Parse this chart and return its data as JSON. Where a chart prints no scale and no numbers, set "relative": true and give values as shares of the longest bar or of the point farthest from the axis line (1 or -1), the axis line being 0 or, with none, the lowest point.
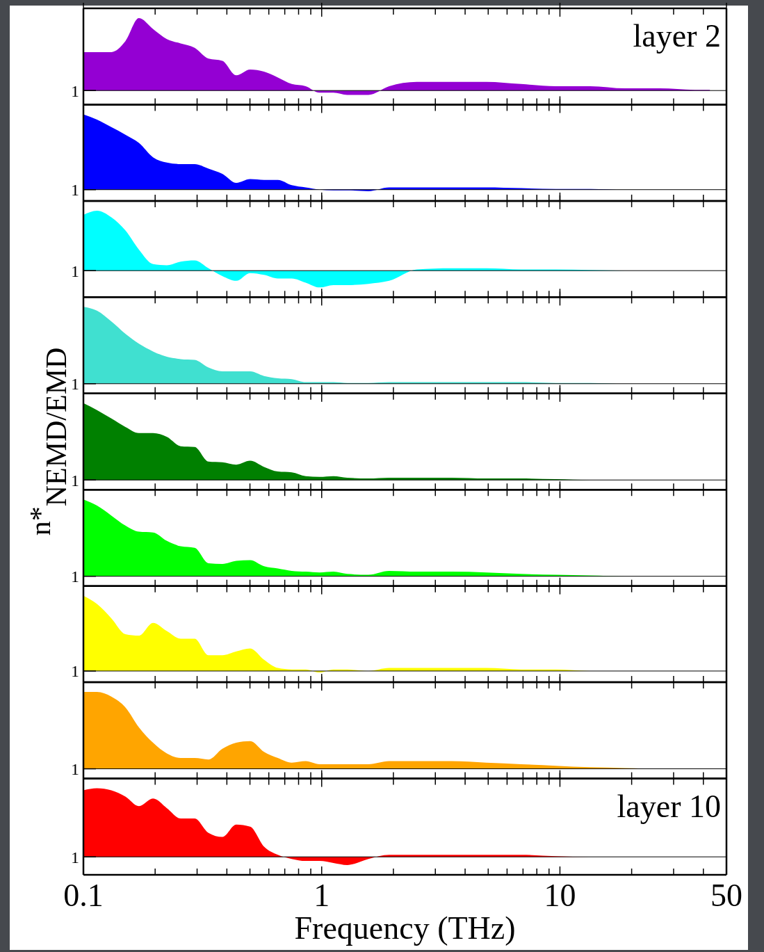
{
  "chart_data": [
    {
      "type": "area",
      "relative": true,
      "log": "x",
      "tick_labels": false,
      "xlim": [
        0.1,
        50
      ],
      "xticks": [
        0.1,
        {
          "value": 0.2,
          "label": null
        },
        {
          "value": 0.3,
          "label": null
        },
        {
          "value": 0.4,
          "label": null
        },
        {
          "value": 0.5,
          "label": null
        },
        {
          "value": 0.6,
          "label": null
        },
        {
          "value": 0.7,
          "label": null
        },
        {
          "value": 0.8,
          "label": null
        },
        {
          "value": 0.9,
          "label": null
        },
        1,
        {
          "value": 2,
          "label": null
        },
        {
          "value": 3,
          "label": null
        },
        {
          "value": 4,
          "label": null
        },
        {
          "value": 5,
          "label": null
        },
        {
          "value": 6,
          "label": null
        },
        {
          "value": 7,
          "label": null
        },
        {
          "value": 8,
          "label": null
        },
        {
          "value": 9,
          "label": null
        },
        10,
        {
          "value": 20,
          "label": null
        },
        {
          "value": 30,
          "label": null
        },
        {
          "value": 40,
          "label": null
        },
        50
      ],
      "x": [
        0.1,
        0.114,
        0.131,
        0.15,
        0.171,
        0.196,
        0.224,
        0.256,
        0.293,
        0.335,
        0.383,
        0.438,
        0.501,
        0.573,
        0.655,
        0.749,
        0.857,
        0.98,
        1.12,
        1.28,
        1.57,
        1.92,
        2.51,
        3.51,
        4.91,
        6.87,
        9.61,
        13.4,
        18.8,
        26.3,
        36.8,
        42.6
      ],
      "series": [
        {
          "color": "#9400d3",
          "values": [
            0.53,
            0.53,
            0.53,
            0.68,
            1,
            0.85,
            0.71,
            0.65,
            0.59,
            0.44,
            0.41,
            0.21,
            0.29,
            0.26,
            0.18,
            0.09,
            0.06,
            -0.03,
            -0.03,
            -0.06,
            -0.06,
            0.06,
            0.12,
            0.12,
            0.12,
            0.09,
            0.06,
            0.06,
            0.03,
            0.03,
            0.01,
            0.01
          ]
        }
      ],
      "annotations": [
        "1",
        "layer 2"
      ]
    },
    {
      "type": "area",
      "relative": true,
      "log": "x",
      "tick_labels": false,
      "xlim": [
        0.1,
        50
      ],
      "xticks": [
        0.1,
        {
          "value": 0.2,
          "label": null
        },
        {
          "value": 0.3,
          "label": null
        },
        {
          "value": 0.4,
          "label": null
        },
        {
          "value": 0.5,
          "label": null
        },
        {
          "value": 0.6,
          "label": null
        },
        {
          "value": 0.7,
          "label": null
        },
        {
          "value": 0.8,
          "label": null
        },
        {
          "value": 0.9,
          "label": null
        },
        1,
        {
          "value": 2,
          "label": null
        },
        {
          "value": 3,
          "label": null
        },
        {
          "value": 4,
          "label": null
        },
        {
          "value": 5,
          "label": null
        },
        {
          "value": 6,
          "label": null
        },
        {
          "value": 7,
          "label": null
        },
        {
          "value": 8,
          "label": null
        },
        {
          "value": 9,
          "label": null
        },
        10,
        {
          "value": 20,
          "label": null
        },
        {
          "value": 30,
          "label": null
        },
        {
          "value": 40,
          "label": null
        },
        50
      ],
      "x": [
        0.1,
        0.114,
        0.131,
        0.15,
        0.171,
        0.196,
        0.224,
        0.256,
        0.293,
        0.335,
        0.383,
        0.438,
        0.501,
        0.573,
        0.655,
        0.749,
        0.857,
        0.98,
        1.12,
        1.28,
        1.57,
        1.92,
        2.51,
        3.51,
        4.91,
        6.87,
        9.61,
        13.4,
        18.8,
        26.3,
        36.8,
        42.6
      ],
      "series": [
        {
          "color": "#0000ff",
          "values": [
            1,
            0.93,
            0.83,
            0.73,
            0.62,
            0.43,
            0.36,
            0.34,
            0.34,
            0.28,
            0.21,
            0.09,
            0.14,
            0.13,
            0.13,
            0.06,
            0.03,
            0,
            -0.01,
            -0.01,
            -0.02,
            0.03,
            0.03,
            0.03,
            0.03,
            0.02,
            0.01,
            0.01,
            0,
            0,
            0,
            0
          ]
        }
      ],
      "annotations": [
        "1"
      ]
    },
    {
      "type": "area",
      "relative": true,
      "log": "x",
      "tick_labels": false,
      "xlim": [
        0.1,
        50
      ],
      "xticks": [
        0.1,
        {
          "value": 0.2,
          "label": null
        },
        {
          "value": 0.3,
          "label": null
        },
        {
          "value": 0.4,
          "label": null
        },
        {
          "value": 0.5,
          "label": null
        },
        {
          "value": 0.6,
          "label": null
        },
        {
          "value": 0.7,
          "label": null
        },
        {
          "value": 0.8,
          "label": null
        },
        {
          "value": 0.9,
          "label": null
        },
        1,
        {
          "value": 2,
          "label": null
        },
        {
          "value": 3,
          "label": null
        },
        {
          "value": 4,
          "label": null
        },
        {
          "value": 5,
          "label": null
        },
        {
          "value": 6,
          "label": null
        },
        {
          "value": 7,
          "label": null
        },
        {
          "value": 8,
          "label": null
        },
        {
          "value": 9,
          "label": null
        },
        10,
        {
          "value": 20,
          "label": null
        },
        {
          "value": 30,
          "label": null
        },
        {
          "value": 40,
          "label": null
        },
        50
      ],
      "x": [
        0.1,
        0.114,
        0.131,
        0.15,
        0.171,
        0.196,
        0.224,
        0.256,
        0.293,
        0.335,
        0.383,
        0.438,
        0.501,
        0.573,
        0.655,
        0.749,
        0.857,
        0.98,
        1.12,
        1.28,
        1.57,
        1.92,
        2.51,
        3.51,
        4.91,
        6.87,
        9.61,
        13.4,
        18.8,
        26.3,
        36.8,
        42.6
      ],
      "series": [
        {
          "color": "#00ffff",
          "values": [
            0.93,
            1,
            0.89,
            0.67,
            0.35,
            0.11,
            0.09,
            0.15,
            0.17,
            0.04,
            -0.09,
            -0.17,
            -0.04,
            -0.07,
            -0.13,
            -0.13,
            -0.2,
            -0.28,
            -0.24,
            -0.24,
            -0.22,
            -0.17,
            0.02,
            0.04,
            0.04,
            0.02,
            0.02,
            0.01,
            0,
            0,
            0,
            0
          ]
        }
      ],
      "annotations": [
        "1"
      ]
    },
    {
      "type": "area",
      "relative": true,
      "log": "x",
      "tick_labels": false,
      "xlim": [
        0.1,
        50
      ],
      "xticks": [
        0.1,
        {
          "value": 0.2,
          "label": null
        },
        {
          "value": 0.3,
          "label": null
        },
        {
          "value": 0.4,
          "label": null
        },
        {
          "value": 0.5,
          "label": null
        },
        {
          "value": 0.6,
          "label": null
        },
        {
          "value": 0.7,
          "label": null
        },
        {
          "value": 0.8,
          "label": null
        },
        {
          "value": 0.9,
          "label": null
        },
        1,
        {
          "value": 2,
          "label": null
        },
        {
          "value": 3,
          "label": null
        },
        {
          "value": 4,
          "label": null
        },
        {
          "value": 5,
          "label": null
        },
        {
          "value": 6,
          "label": null
        },
        {
          "value": 7,
          "label": null
        },
        {
          "value": 8,
          "label": null
        },
        {
          "value": 9,
          "label": null
        },
        10,
        {
          "value": 20,
          "label": null
        },
        {
          "value": 30,
          "label": null
        },
        {
          "value": 40,
          "label": null
        },
        50
      ],
      "x": [
        0.1,
        0.114,
        0.131,
        0.15,
        0.171,
        0.196,
        0.224,
        0.256,
        0.293,
        0.335,
        0.383,
        0.438,
        0.501,
        0.573,
        0.655,
        0.749,
        0.857,
        0.98,
        1.12,
        1.28,
        1.57,
        1.92,
        2.51,
        3.51,
        4.91,
        6.87,
        9.61,
        13.4,
        18.8,
        26.3,
        36.8,
        42.6
      ],
      "series": [
        {
          "color": "#40e0d0",
          "values": [
            1,
            0.95,
            0.81,
            0.65,
            0.52,
            0.42,
            0.35,
            0.32,
            0.31,
            0.21,
            0.16,
            0.16,
            0.16,
            0.1,
            0.07,
            0.06,
            0.02,
            0.02,
            0.02,
            0.01,
            0.01,
            0.02,
            0.02,
            0.02,
            0.02,
            0.02,
            0.01,
            0.01,
            0,
            0,
            0,
            0
          ]
        }
      ],
      "annotations": [
        "1"
      ]
    },
    {
      "type": "area",
      "relative": true,
      "log": "x",
      "tick_labels": false,
      "xlim": [
        0.1,
        50
      ],
      "xticks": [
        0.1,
        {
          "value": 0.2,
          "label": null
        },
        {
          "value": 0.3,
          "label": null
        },
        {
          "value": 0.4,
          "label": null
        },
        {
          "value": 0.5,
          "label": null
        },
        {
          "value": 0.6,
          "label": null
        },
        {
          "value": 0.7,
          "label": null
        },
        {
          "value": 0.8,
          "label": null
        },
        {
          "value": 0.9,
          "label": null
        },
        1,
        {
          "value": 2,
          "label": null
        },
        {
          "value": 3,
          "label": null
        },
        {
          "value": 4,
          "label": null
        },
        {
          "value": 5,
          "label": null
        },
        {
          "value": 6,
          "label": null
        },
        {
          "value": 7,
          "label": null
        },
        {
          "value": 8,
          "label": null
        },
        {
          "value": 9,
          "label": null
        },
        10,
        {
          "value": 20,
          "label": null
        },
        {
          "value": 30,
          "label": null
        },
        {
          "value": 40,
          "label": null
        },
        50
      ],
      "x": [
        0.1,
        0.114,
        0.131,
        0.15,
        0.171,
        0.196,
        0.224,
        0.256,
        0.293,
        0.335,
        0.383,
        0.438,
        0.501,
        0.573,
        0.655,
        0.749,
        0.857,
        0.98,
        1.12,
        1.28,
        1.57,
        1.92,
        2.51,
        3.51,
        4.91,
        6.87,
        9.61,
        13.4,
        18.8,
        26.3,
        36.8,
        42.6
      ],
      "series": [
        {
          "color": "#008000",
          "values": [
            1,
            0.91,
            0.8,
            0.69,
            0.61,
            0.61,
            0.56,
            0.44,
            0.43,
            0.24,
            0.23,
            0.2,
            0.25,
            0.17,
            0.11,
            0.1,
            0.05,
            0.04,
            0.05,
            0.03,
            0.02,
            0.03,
            0.03,
            0.03,
            0.02,
            0.02,
            0.01,
            0,
            0,
            0,
            0,
            0
          ]
        }
      ],
      "ylabel": "n*$_{NEMD/EMD}$",
      "annotations": [
        "1"
      ]
    },
    {
      "type": "area",
      "relative": true,
      "log": "x",
      "tick_labels": false,
      "xlim": [
        0.1,
        50
      ],
      "xticks": [
        0.1,
        {
          "value": 0.2,
          "label": null
        },
        {
          "value": 0.3,
          "label": null
        },
        {
          "value": 0.4,
          "label": null
        },
        {
          "value": 0.5,
          "label": null
        },
        {
          "value": 0.6,
          "label": null
        },
        {
          "value": 0.7,
          "label": null
        },
        {
          "value": 0.8,
          "label": null
        },
        {
          "value": 0.9,
          "label": null
        },
        1,
        {
          "value": 2,
          "label": null
        },
        {
          "value": 3,
          "label": null
        },
        {
          "value": 4,
          "label": null
        },
        {
          "value": 5,
          "label": null
        },
        {
          "value": 6,
          "label": null
        },
        {
          "value": 7,
          "label": null
        },
        {
          "value": 8,
          "label": null
        },
        {
          "value": 9,
          "label": null
        },
        10,
        {
          "value": 20,
          "label": null
        },
        {
          "value": 30,
          "label": null
        },
        {
          "value": 40,
          "label": null
        },
        50
      ],
      "x": [
        0.1,
        0.114,
        0.131,
        0.15,
        0.171,
        0.196,
        0.224,
        0.256,
        0.293,
        0.335,
        0.383,
        0.438,
        0.501,
        0.573,
        0.655,
        0.749,
        0.857,
        0.98,
        1.12,
        1.28,
        1.57,
        1.92,
        2.51,
        3.51,
        4.91,
        6.87,
        9.61,
        13.4,
        18.8,
        26.3,
        36.8,
        42.6
      ],
      "series": [
        {
          "color": "#00ff00",
          "values": [
            1,
            0.92,
            0.79,
            0.66,
            0.58,
            0.57,
            0.46,
            0.39,
            0.37,
            0.17,
            0.16,
            0.2,
            0.21,
            0.13,
            0.1,
            0.07,
            0.06,
            0.05,
            0.06,
            0.03,
            0.02,
            0.07,
            0.06,
            0.06,
            0.05,
            0.03,
            0.02,
            0.01,
            0,
            0,
            0,
            0
          ]
        }
      ],
      "annotations": [
        "1"
      ]
    },
    {
      "type": "area",
      "relative": true,
      "log": "x",
      "tick_labels": false,
      "xlim": [
        0.1,
        50
      ],
      "xticks": [
        0.1,
        {
          "value": 0.2,
          "label": null
        },
        {
          "value": 0.3,
          "label": null
        },
        {
          "value": 0.4,
          "label": null
        },
        {
          "value": 0.5,
          "label": null
        },
        {
          "value": 0.6,
          "label": null
        },
        {
          "value": 0.7,
          "label": null
        },
        {
          "value": 0.8,
          "label": null
        },
        {
          "value": 0.9,
          "label": null
        },
        1,
        {
          "value": 2,
          "label": null
        },
        {
          "value": 3,
          "label": null
        },
        {
          "value": 4,
          "label": null
        },
        {
          "value": 5,
          "label": null
        },
        {
          "value": 6,
          "label": null
        },
        {
          "value": 7,
          "label": null
        },
        {
          "value": 8,
          "label": null
        },
        {
          "value": 9,
          "label": null
        },
        10,
        {
          "value": 20,
          "label": null
        },
        {
          "value": 30,
          "label": null
        },
        {
          "value": 40,
          "label": null
        },
        50
      ],
      "x": [
        0.1,
        0.114,
        0.131,
        0.15,
        0.171,
        0.196,
        0.224,
        0.256,
        0.293,
        0.335,
        0.383,
        0.438,
        0.501,
        0.573,
        0.655,
        0.749,
        0.857,
        0.98,
        1.12,
        1.28,
        1.57,
        1.92,
        2.51,
        3.51,
        4.91,
        6.87,
        9.61,
        13.4,
        18.8,
        26.3,
        36.8,
        42.6
      ],
      "series": [
        {
          "color": "#ffff00",
          "values": [
            1,
            0.89,
            0.7,
            0.49,
            0.47,
            0.64,
            0.53,
            0.43,
            0.43,
            0.21,
            0.21,
            0.26,
            0.3,
            0.15,
            0.04,
            0.02,
            0.02,
            -0.02,
            0.02,
            0.02,
            0,
            0.04,
            0.04,
            0.04,
            0.04,
            0.02,
            0.02,
            0,
            0,
            0,
            0,
            0
          ]
        }
      ],
      "annotations": [
        "1"
      ]
    },
    {
      "type": "area",
      "relative": true,
      "log": "x",
      "tick_labels": false,
      "xlim": [
        0.1,
        50
      ],
      "xticks": [
        0.1,
        {
          "value": 0.2,
          "label": null
        },
        {
          "value": 0.3,
          "label": null
        },
        {
          "value": 0.4,
          "label": null
        },
        {
          "value": 0.5,
          "label": null
        },
        {
          "value": 0.6,
          "label": null
        },
        {
          "value": 0.7,
          "label": null
        },
        {
          "value": 0.8,
          "label": null
        },
        {
          "value": 0.9,
          "label": null
        },
        1,
        {
          "value": 2,
          "label": null
        },
        {
          "value": 3,
          "label": null
        },
        {
          "value": 4,
          "label": null
        },
        {
          "value": 5,
          "label": null
        },
        {
          "value": 6,
          "label": null
        },
        {
          "value": 7,
          "label": null
        },
        {
          "value": 8,
          "label": null
        },
        {
          "value": 9,
          "label": null
        },
        10,
        {
          "value": 20,
          "label": null
        },
        {
          "value": 30,
          "label": null
        },
        {
          "value": 40,
          "label": null
        },
        50
      ],
      "x": [
        0.1,
        0.114,
        0.131,
        0.15,
        0.171,
        0.196,
        0.224,
        0.256,
        0.293,
        0.335,
        0.383,
        0.438,
        0.501,
        0.573,
        0.655,
        0.749,
        0.857,
        0.98,
        1.12,
        1.28,
        1.57,
        1.92,
        2.51,
        3.51,
        4.91,
        6.87,
        9.61,
        13.4,
        18.8,
        26.3,
        36.8,
        42.6
      ],
      "series": [
        {
          "color": "#ffa500",
          "values": [
            1,
            1,
            0.94,
            0.8,
            0.54,
            0.34,
            0.2,
            0.14,
            0.14,
            0.12,
            0.26,
            0.34,
            0.36,
            0.22,
            0.14,
            0.08,
            0.1,
            0.06,
            0.06,
            0.06,
            0.06,
            0.1,
            0.1,
            0.1,
            0.08,
            0.06,
            0.04,
            0.02,
            0.01,
            0,
            0,
            0
          ]
        }
      ],
      "annotations": [
        "1"
      ]
    },
    {
      "type": "area",
      "relative": true,
      "log": "x",
      "tick_labels": "x",
      "xlim": [
        0.1,
        50
      ],
      "xticks": [
        0.1,
        {
          "value": 0.2,
          "label": null
        },
        {
          "value": 0.3,
          "label": null
        },
        {
          "value": 0.4,
          "label": null
        },
        {
          "value": 0.5,
          "label": null
        },
        {
          "value": 0.6,
          "label": null
        },
        {
          "value": 0.7,
          "label": null
        },
        {
          "value": 0.8,
          "label": null
        },
        {
          "value": 0.9,
          "label": null
        },
        1,
        {
          "value": 2,
          "label": null
        },
        {
          "value": 3,
          "label": null
        },
        {
          "value": 4,
          "label": null
        },
        {
          "value": 5,
          "label": null
        },
        {
          "value": 6,
          "label": null
        },
        {
          "value": 7,
          "label": null
        },
        {
          "value": 8,
          "label": null
        },
        {
          "value": 9,
          "label": null
        },
        10,
        {
          "value": 20,
          "label": null
        },
        {
          "value": 30,
          "label": null
        },
        {
          "value": 40,
          "label": null
        },
        50
      ],
      "x": [
        0.1,
        0.114,
        0.131,
        0.15,
        0.171,
        0.196,
        0.224,
        0.256,
        0.293,
        0.335,
        0.383,
        0.438,
        0.501,
        0.573,
        0.655,
        0.749,
        0.857,
        0.98,
        1.12,
        1.28,
        1.57,
        1.92,
        2.51,
        3.51,
        4.91,
        6.87,
        9.61,
        13.4,
        18.8,
        26.3,
        36.8,
        42.6
      ],
      "series": [
        {
          "color": "#ff0000",
          "values": [
            0.97,
            1,
            0.97,
            0.88,
            0.74,
            0.85,
            0.71,
            0.56,
            0.56,
            0.35,
            0.29,
            0.47,
            0.44,
            0.15,
            0.03,
            -0.03,
            -0.06,
            -0.06,
            -0.09,
            -0.12,
            -0.03,
            0.03,
            0.03,
            0.03,
            0.03,
            0.03,
            0.01,
            0,
            0,
            0,
            0,
            0
          ]
        }
      ],
      "xlabel": "Frequency (THz)",
      "annotations": [
        "1",
        "layer 10"
      ]
    }
  ]
}
